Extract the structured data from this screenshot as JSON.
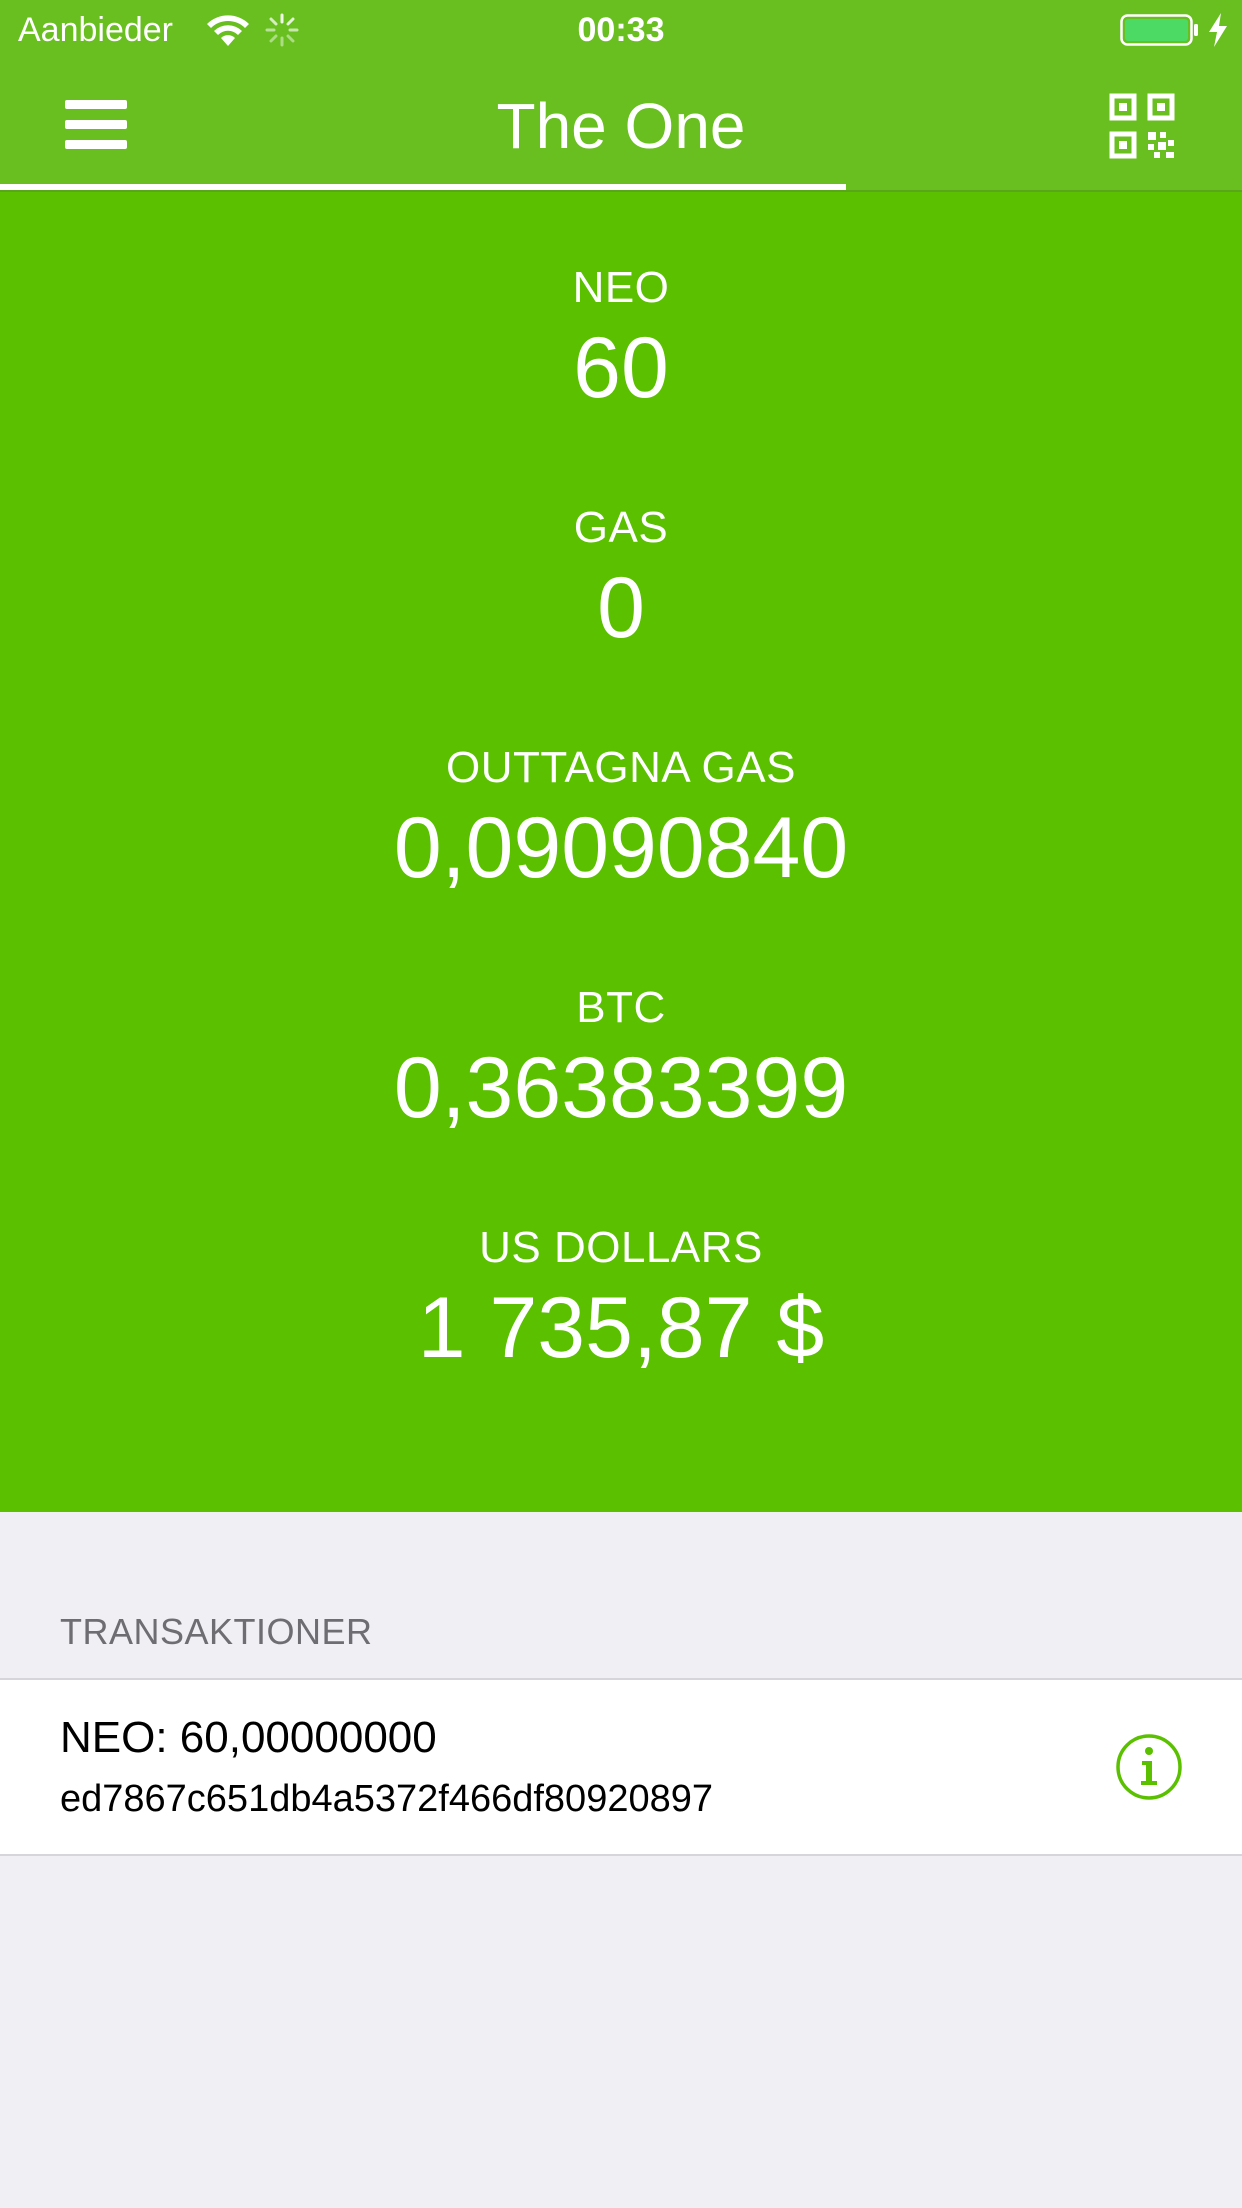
{
  "status_bar": {
    "carrier": "Aanbieder",
    "time": "00:33",
    "wifi_icon": "wifi-icon",
    "activity_icon": "spinner-icon",
    "battery_icon": "battery-icon",
    "charging_icon": "charging-bolt-icon",
    "battery_color": "#4cd964"
  },
  "nav": {
    "title": "The One",
    "menu_icon": "hamburger-menu-icon",
    "qr_icon": "qr-code-icon",
    "bar_color": "#68bf1f"
  },
  "balances": {
    "panel_color": "#5ac000",
    "items": [
      {
        "label": "NEO",
        "value": "60"
      },
      {
        "label": "GAS",
        "value": "0"
      },
      {
        "label": "OUTTAGNA GAS",
        "value": "0,09090840"
      },
      {
        "label": "BTC",
        "value": "0,36383399"
      },
      {
        "label": "US DOLLARS",
        "value": "1 735,87 $"
      }
    ]
  },
  "transactions": {
    "header": "TRANSAKTIONER",
    "items": [
      {
        "amount": "NEO: 60,00000000",
        "hash": "ed7867c651db4a5372f466df80920897",
        "info_icon": "info-icon",
        "accent_color": "#5ac000"
      }
    ]
  }
}
